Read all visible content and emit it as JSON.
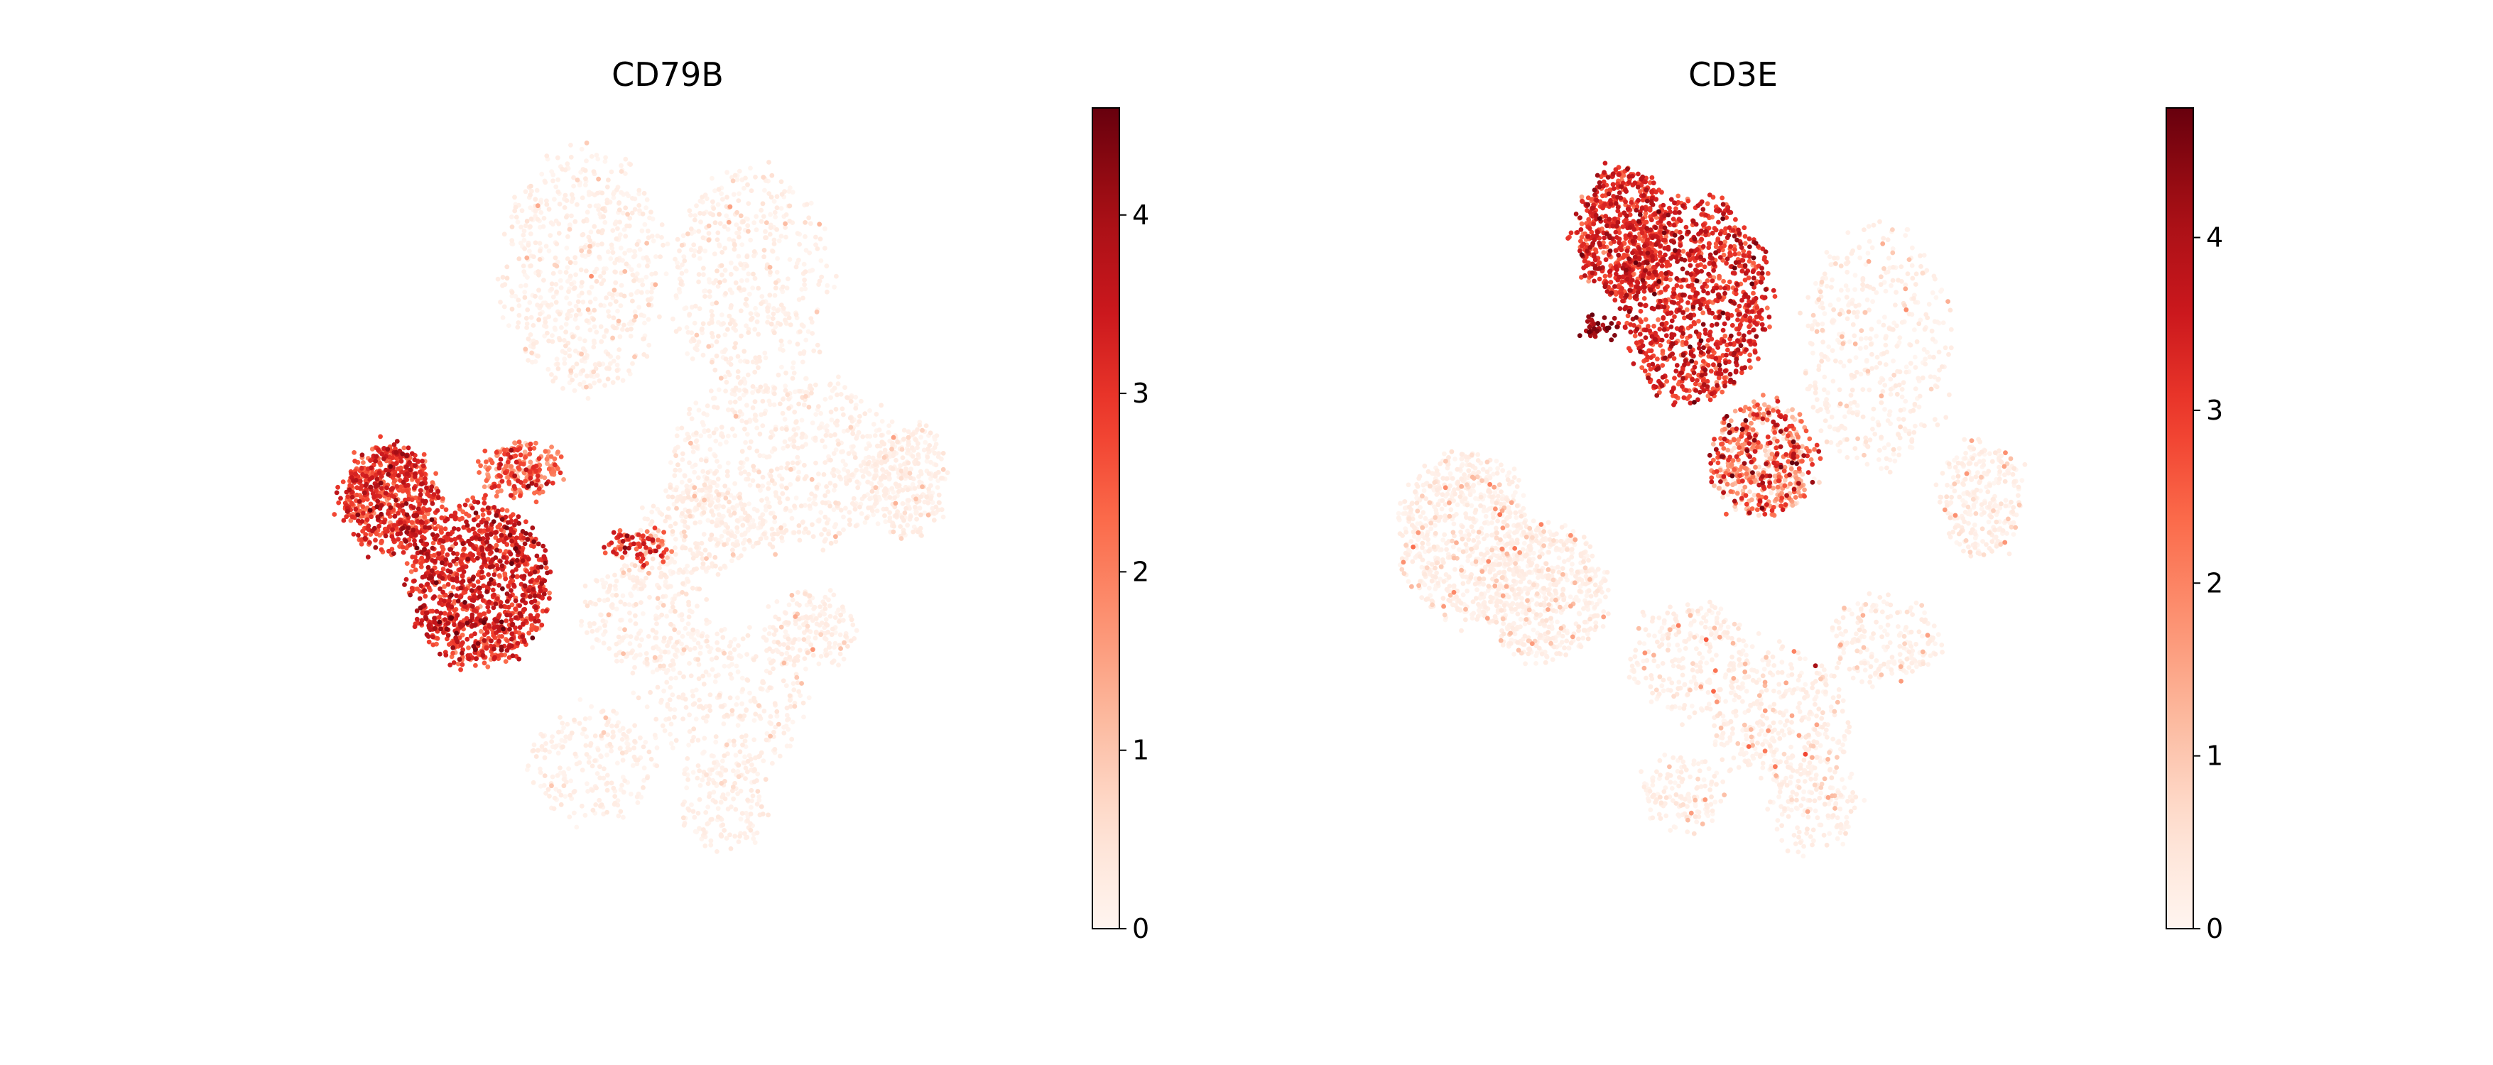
{
  "chart_data": [
    {
      "type": "scatter",
      "title": "CD79B",
      "xlabel": "",
      "ylabel": "",
      "colormap": "Reds",
      "colorbar": {
        "min": 0,
        "max": 4.6,
        "ticks": [
          0,
          1,
          2,
          3,
          4
        ],
        "tick_labels": [
          "0",
          "1",
          "2",
          "3",
          "4"
        ]
      },
      "grid": false,
      "axes_visible": false,
      "clusters": [
        {
          "cx": -3.2,
          "cy": 0.6,
          "rx": 0.55,
          "ry": 0.55,
          "n": 650,
          "level": 2.9,
          "spread": 0.6
        },
        {
          "cx": -2.2,
          "cy": -0.3,
          "rx": 0.8,
          "ry": 0.85,
          "n": 1100,
          "level": 3.1,
          "spread": 0.6
        },
        {
          "cx": -1.7,
          "cy": 0.9,
          "rx": 0.45,
          "ry": 0.25,
          "n": 220,
          "level": 2.2,
          "spread": 0.8
        },
        {
          "cx": -1.0,
          "cy": 3.0,
          "rx": 0.9,
          "ry": 1.3,
          "n": 650,
          "level": 0.2,
          "spread": 0.5
        },
        {
          "cx": 0.9,
          "cy": 2.9,
          "rx": 0.9,
          "ry": 1.2,
          "n": 500,
          "level": 0.15,
          "spread": 0.4
        },
        {
          "cx": 1.3,
          "cy": 1.0,
          "rx": 1.3,
          "ry": 0.9,
          "n": 650,
          "level": 0.15,
          "spread": 0.4
        },
        {
          "cx": 2.7,
          "cy": 0.8,
          "rx": 0.45,
          "ry": 0.6,
          "n": 300,
          "level": 0.2,
          "spread": 0.5
        },
        {
          "cx": 0.3,
          "cy": 0.3,
          "rx": 0.6,
          "ry": 0.5,
          "n": 260,
          "level": 0.25,
          "spread": 0.5
        },
        {
          "cx": -0.3,
          "cy": -0.6,
          "rx": 0.7,
          "ry": 0.6,
          "n": 260,
          "level": 0.15,
          "spread": 0.4
        },
        {
          "cx": 0.6,
          "cy": -1.5,
          "rx": 0.9,
          "ry": 0.8,
          "n": 320,
          "level": 0.15,
          "spread": 0.4
        },
        {
          "cx": 1.6,
          "cy": -0.8,
          "rx": 0.5,
          "ry": 0.4,
          "n": 180,
          "level": 0.3,
          "spread": 0.6
        },
        {
          "cx": -0.9,
          "cy": -2.2,
          "rx": 0.7,
          "ry": 0.6,
          "n": 220,
          "level": 0.15,
          "spread": 0.4
        },
        {
          "cx": 0.6,
          "cy": -2.6,
          "rx": 0.5,
          "ry": 0.5,
          "n": 160,
          "level": 0.12,
          "spread": 0.3
        },
        {
          "cx": -0.4,
          "cy": 0.1,
          "rx": 0.35,
          "ry": 0.15,
          "n": 90,
          "level": 2.6,
          "spread": 0.8
        }
      ]
    },
    {
      "type": "scatter",
      "title": "CD3E",
      "xlabel": "",
      "ylabel": "",
      "colormap": "Reds",
      "colorbar": {
        "min": 0,
        "max": 4.75,
        "ticks": [
          0,
          1,
          2,
          3,
          4
        ],
        "tick_labels": [
          "0",
          "1",
          "2",
          "3",
          "4"
        ]
      },
      "grid": false,
      "axes_visible": false,
      "clusters": [
        {
          "cx": -1.3,
          "cy": 3.4,
          "rx": 0.55,
          "ry": 0.65,
          "n": 600,
          "level": 3.1,
          "spread": 0.6
        },
        {
          "cx": -0.5,
          "cy": 2.7,
          "rx": 0.85,
          "ry": 1.1,
          "n": 1100,
          "level": 3.2,
          "spread": 0.6
        },
        {
          "cx": 0.3,
          "cy": 1.0,
          "rx": 0.6,
          "ry": 0.6,
          "n": 550,
          "level": 2.0,
          "spread": 1.2
        },
        {
          "cx": 1.6,
          "cy": 2.2,
          "rx": 0.85,
          "ry": 1.3,
          "n": 450,
          "level": 0.3,
          "spread": 0.5
        },
        {
          "cx": 2.8,
          "cy": 0.6,
          "rx": 0.45,
          "ry": 0.6,
          "n": 280,
          "level": 0.35,
          "spread": 0.7
        },
        {
          "cx": -3.1,
          "cy": 0.2,
          "rx": 0.75,
          "ry": 0.9,
          "n": 700,
          "level": 0.35,
          "spread": 0.7
        },
        {
          "cx": -2.2,
          "cy": -0.4,
          "rx": 0.7,
          "ry": 0.7,
          "n": 600,
          "level": 0.35,
          "spread": 0.7
        },
        {
          "cx": 0.5,
          "cy": -1.7,
          "rx": 0.8,
          "ry": 0.7,
          "n": 360,
          "level": 0.5,
          "spread": 1.0
        },
        {
          "cx": -0.5,
          "cy": -1.1,
          "rx": 0.7,
          "ry": 0.6,
          "n": 260,
          "level": 0.4,
          "spread": 0.8
        },
        {
          "cx": 1.7,
          "cy": -0.9,
          "rx": 0.6,
          "ry": 0.45,
          "n": 200,
          "level": 0.3,
          "spread": 0.6
        },
        {
          "cx": -0.6,
          "cy": -2.5,
          "rx": 0.5,
          "ry": 0.4,
          "n": 140,
          "level": 0.3,
          "spread": 0.6
        },
        {
          "cx": 0.9,
          "cy": -2.6,
          "rx": 0.5,
          "ry": 0.5,
          "n": 160,
          "level": 0.3,
          "spread": 0.6
        },
        {
          "cx": -1.55,
          "cy": 2.4,
          "rx": 0.18,
          "ry": 0.1,
          "n": 40,
          "level": 4.3,
          "spread": 0.4
        }
      ]
    }
  ]
}
